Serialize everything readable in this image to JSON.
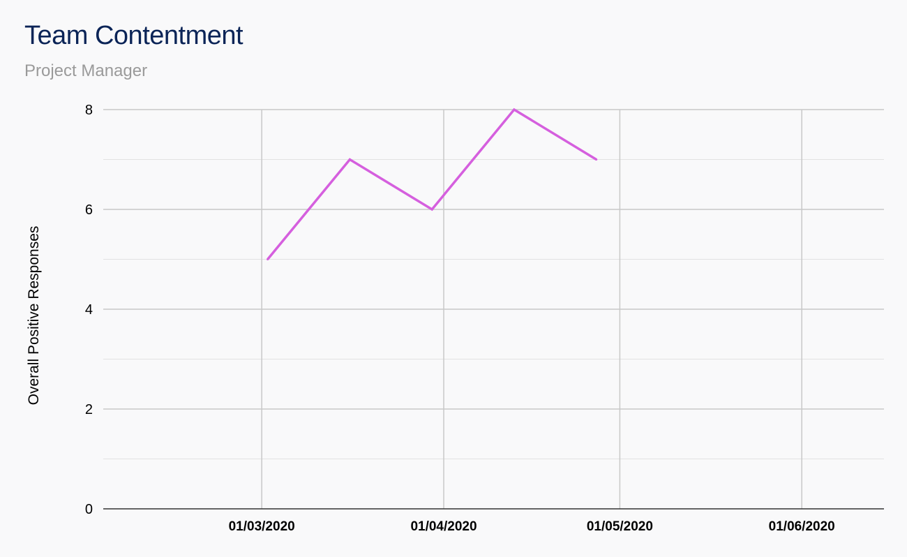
{
  "chart_data": {
    "type": "line",
    "title": "Team Contentment",
    "subtitle": "Project Manager",
    "ylabel": "Overall Positive Responses",
    "xlabel": "",
    "ylim": [
      0,
      8
    ],
    "y_ticks": [
      "0",
      "2",
      "4",
      "6",
      "8"
    ],
    "x_tick_labels": [
      "01/03/2020",
      "01/04/2020",
      "01/05/2020",
      "01/06/2020"
    ],
    "x_tick_dates": [
      "2020-03-01",
      "2020-04-01",
      "2020-05-01",
      "2020-06-01"
    ],
    "x_range": [
      "2020-02-03",
      "2020-06-15"
    ],
    "grid": true,
    "legend": "none",
    "series": [
      {
        "color": "#d55fde",
        "x": [
          "2020-03-02",
          "2020-03-16",
          "2020-03-30",
          "2020-04-13",
          "2020-04-27"
        ],
        "values": [
          5,
          7,
          6,
          8,
          7
        ]
      }
    ]
  }
}
